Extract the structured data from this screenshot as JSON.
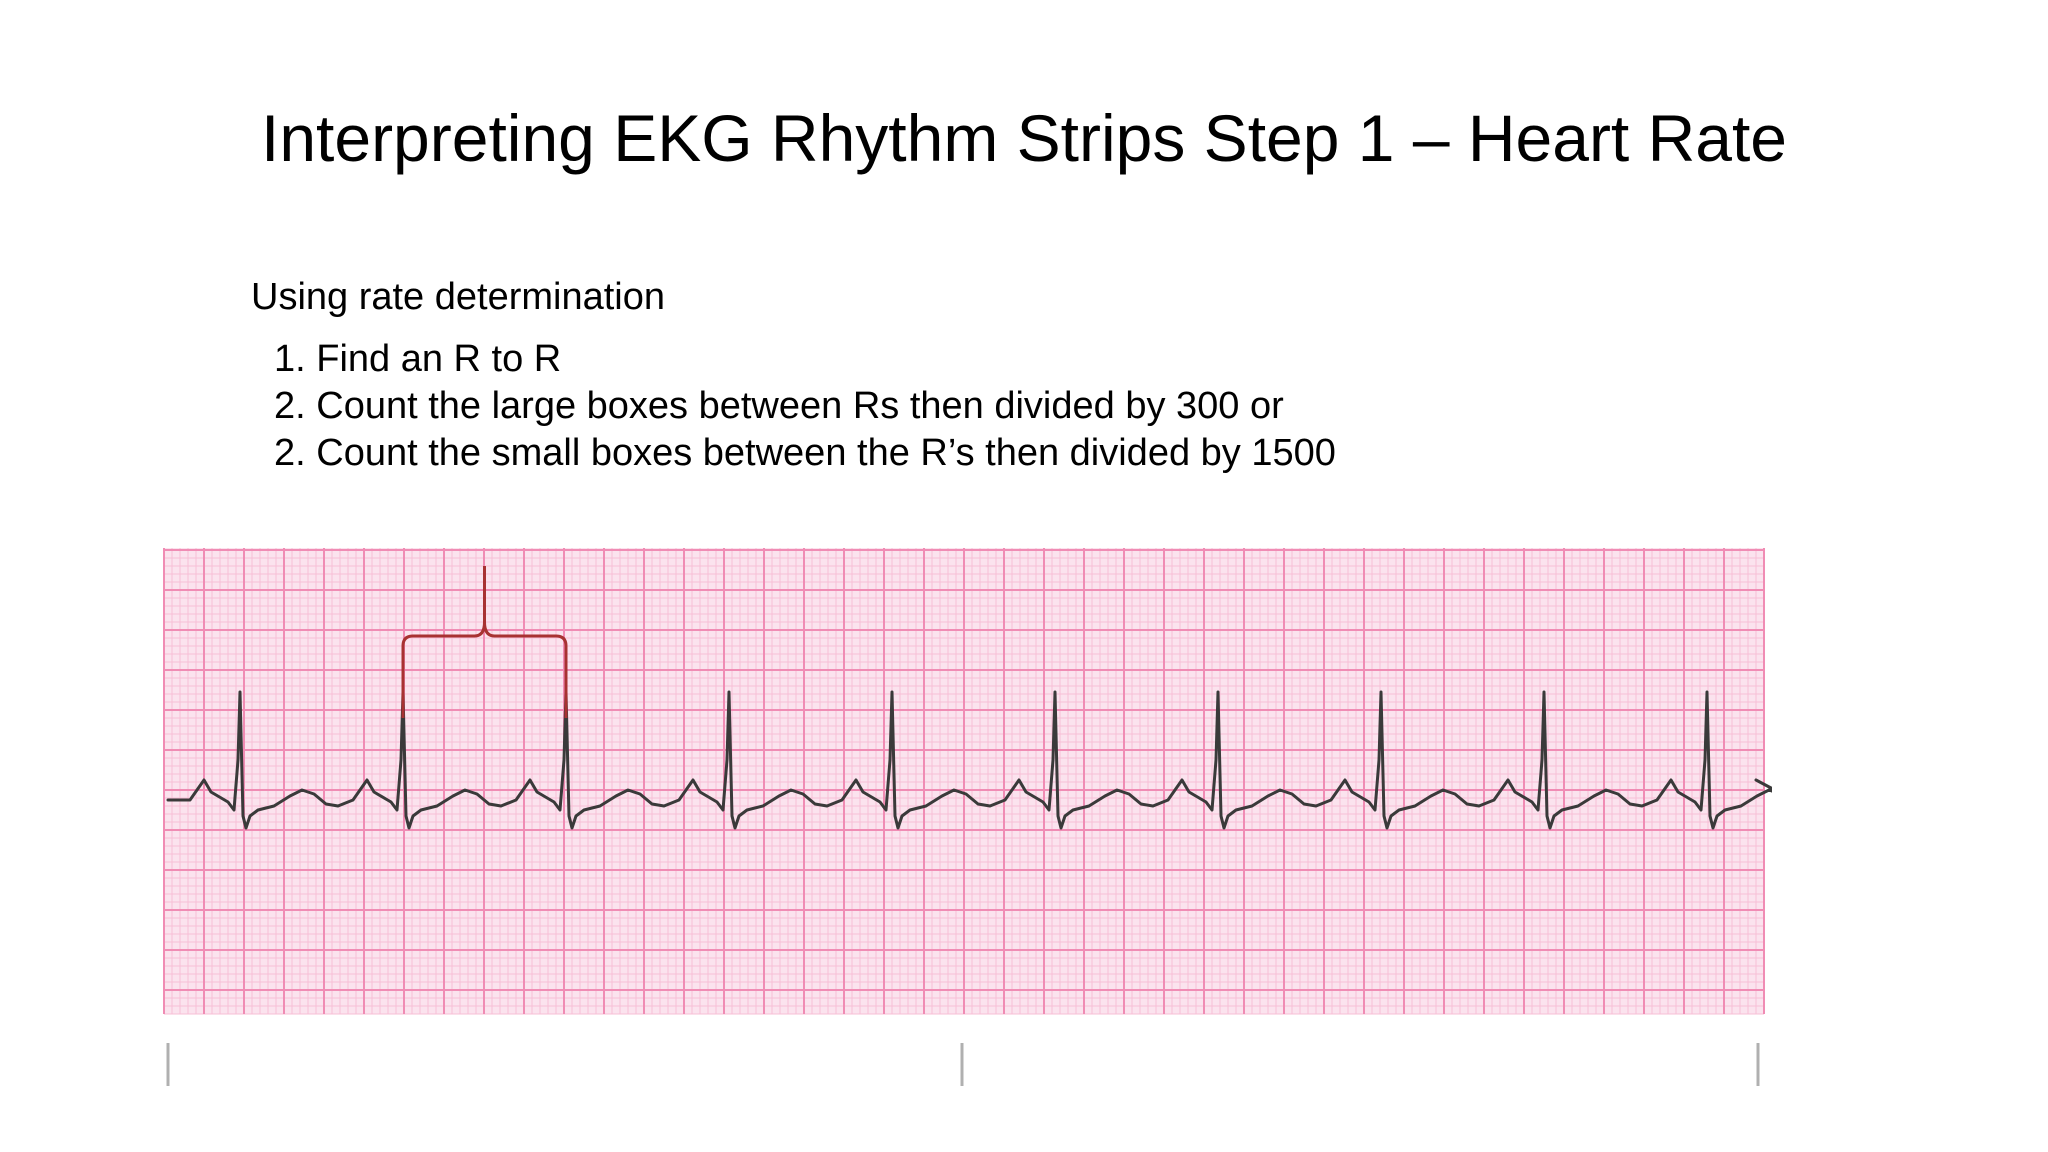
{
  "slide": {
    "title": "Interpreting EKG Rhythm Strips Step 1 – Heart Rate",
    "intro": "Using rate determination",
    "steps": [
      "1. Find an R to R",
      "2. Count the large boxes between Rs then divided by 300 or",
      "2. Count the small boxes between the R’s then divided by 1500"
    ]
  },
  "ekg": {
    "beats": 10,
    "grid_major_color": "#f08cb4",
    "grid_minor_color": "#f7bfd6",
    "paper_color": "#fbe3ee",
    "trace_color": "#3a3a3a",
    "bracket_color": "#a83232",
    "bracket_spans_beats": [
      2,
      3
    ]
  }
}
